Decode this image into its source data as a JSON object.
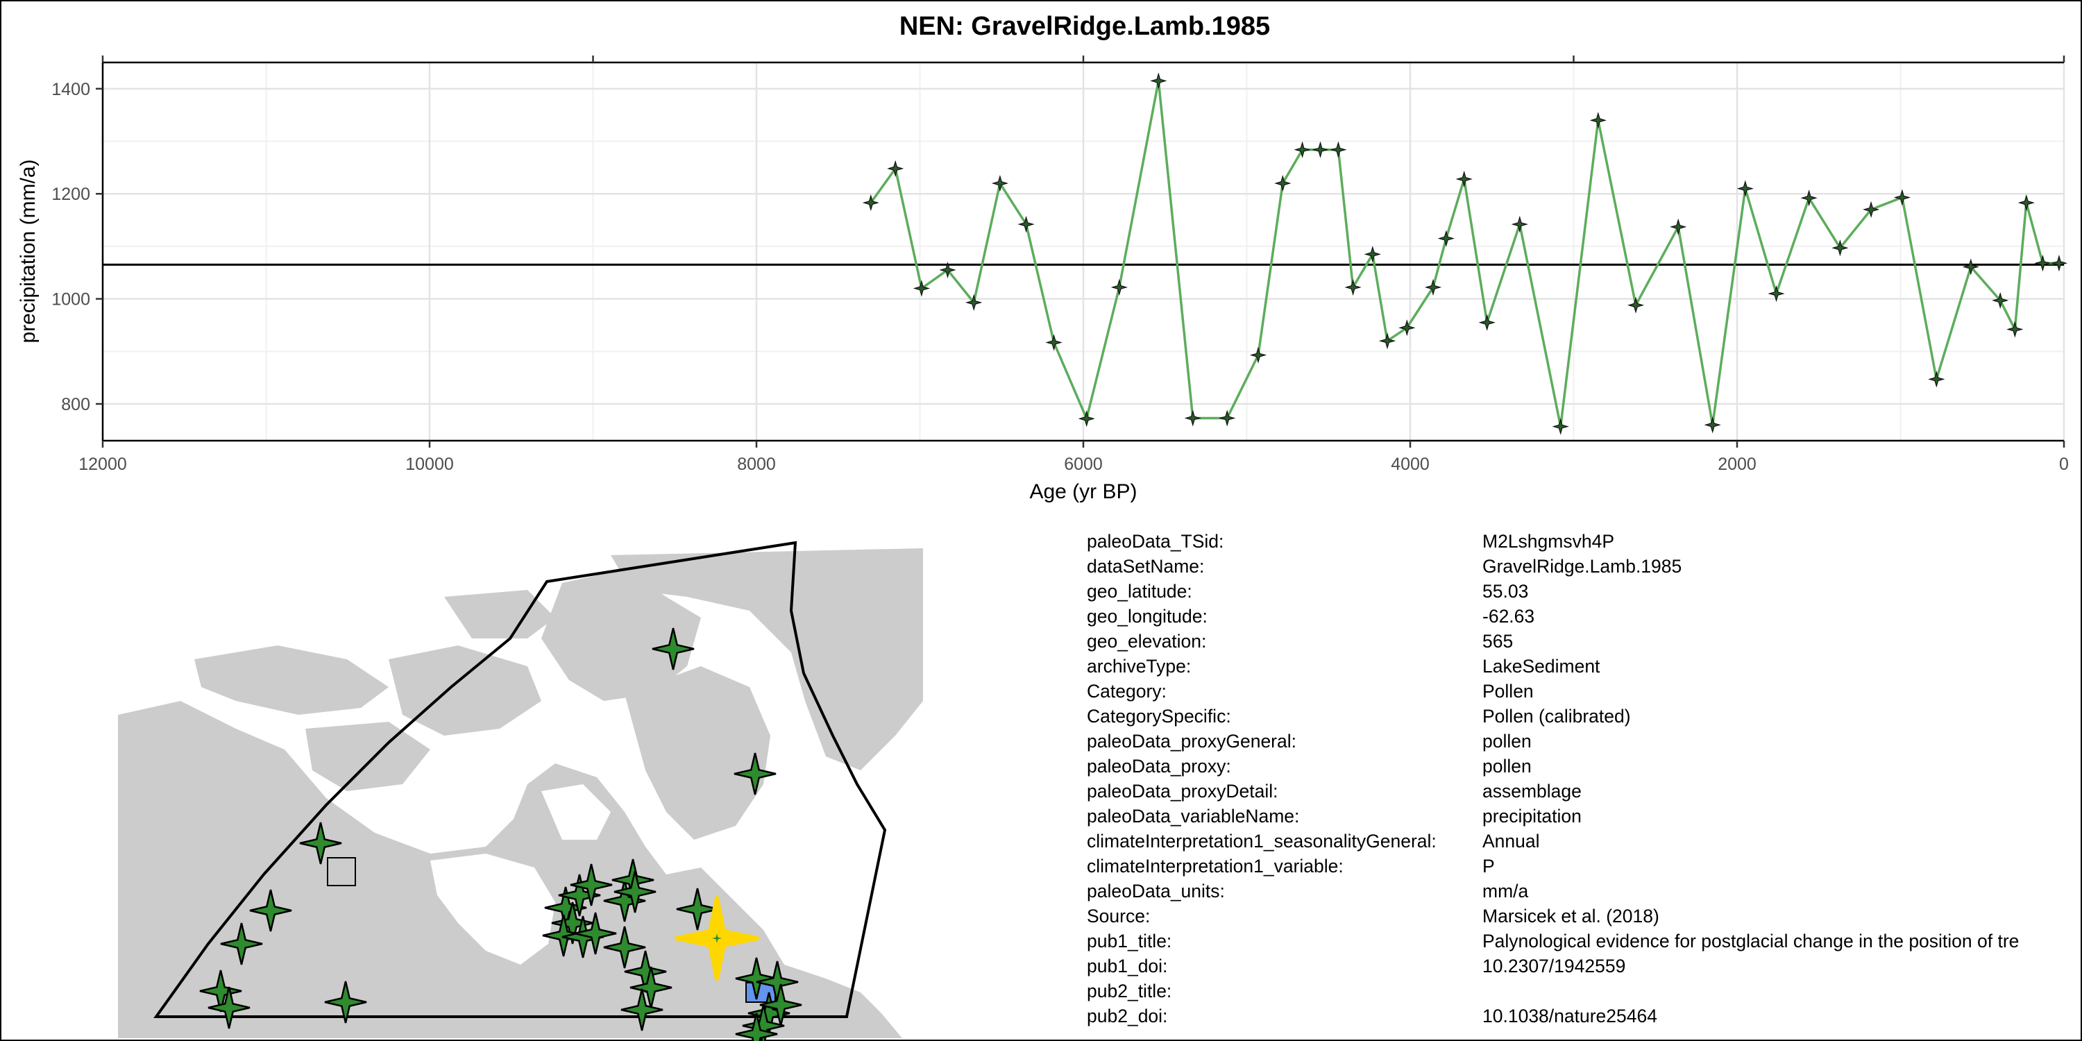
{
  "chart_data": {
    "type": "line",
    "title": "NEN: GravelRidge.Lamb.1985",
    "xlabel": "Age (yr BP)",
    "ylabel": "precipitation (mm/a)",
    "xlim": [
      12000,
      0
    ],
    "ylim": [
      730,
      1450
    ],
    "x_reversed": true,
    "x_ticks": [
      12000,
      10000,
      8000,
      6000,
      4000,
      2000,
      0
    ],
    "y_ticks": [
      800,
      1000,
      1200,
      1400
    ],
    "grid": true,
    "reference_line_y": 1065,
    "line_color": "#5cad5c",
    "marker_color": "#2a5a2a",
    "series": [
      {
        "x": [
          7300,
          7150,
          6990,
          6830,
          6670,
          6510,
          6350,
          6180,
          5980,
          5780,
          5540,
          5330,
          5120,
          4930,
          4780,
          4660,
          4550,
          4440,
          4350,
          4230,
          4140,
          4020,
          3860,
          3780,
          3670,
          3530,
          3330,
          3080,
          2850,
          2620,
          2360,
          2150,
          1950,
          1760,
          1560,
          1370,
          1180,
          990,
          780,
          570,
          390,
          300,
          230,
          130,
          30
        ],
        "y": [
          1183,
          1248,
          1020,
          1055,
          993,
          1220,
          1142,
          917,
          772,
          1022,
          1415,
          773,
          773,
          893,
          1220,
          1284,
          1284,
          1284,
          1022,
          1085,
          920,
          945,
          1022,
          1115,
          1228,
          955,
          1142,
          757,
          1340,
          988,
          1137,
          760,
          1210,
          1010,
          1192,
          1097,
          1170,
          1193,
          847,
          1061,
          997,
          942,
          1183,
          1068,
          1068
        ]
      }
    ]
  },
  "map": {
    "land_color": "#cccccc",
    "region_outline_color": "#000000",
    "site_marker_color": "#2e8b2e",
    "highlight_marker_color": "#ffd700",
    "square_markers": [
      {
        "color": "#cccccc"
      },
      {
        "color": "#6495ed"
      }
    ]
  },
  "metadata": [
    {
      "key": "paleoData_TSid:",
      "value": "M2Lshgmsvh4P"
    },
    {
      "key": "dataSetName:",
      "value": "GravelRidge.Lamb.1985"
    },
    {
      "key": "geo_latitude:",
      "value": "55.03"
    },
    {
      "key": "geo_longitude:",
      "value": "-62.63"
    },
    {
      "key": "geo_elevation:",
      "value": "565"
    },
    {
      "key": "archiveType:",
      "value": "LakeSediment"
    },
    {
      "key": "Category:",
      "value": "Pollen"
    },
    {
      "key": "CategorySpecific:",
      "value": "Pollen (calibrated)"
    },
    {
      "key": "paleoData_proxyGeneral:",
      "value": "pollen"
    },
    {
      "key": "paleoData_proxy:",
      "value": "pollen"
    },
    {
      "key": "paleoData_proxyDetail:",
      "value": "assemblage"
    },
    {
      "key": "paleoData_variableName:",
      "value": "precipitation"
    },
    {
      "key": "climateInterpretation1_seasonalityGeneral:",
      "value": "Annual"
    },
    {
      "key": "climateInterpretation1_variable:",
      "value": "P"
    },
    {
      "key": "paleoData_units:",
      "value": "mm/a"
    },
    {
      "key": "Source:",
      "value": "Marsicek et al. (2018)"
    },
    {
      "key": "pub1_title:",
      "value": "Palynological evidence for postglacial change in the position of tre"
    },
    {
      "key": "pub1_doi:",
      "value": "10.2307/1942559"
    },
    {
      "key": "pub2_title:",
      "value": ""
    },
    {
      "key": "pub2_doi:",
      "value": "10.1038/nature25464"
    }
  ]
}
